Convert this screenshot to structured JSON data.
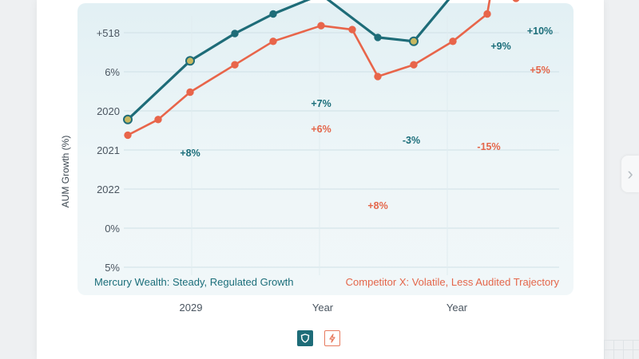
{
  "chart_data": {
    "type": "line",
    "ylabel": "AUM Growth (%)",
    "y_tick_labels": [
      "+518",
      "6%",
      "2020",
      "2021",
      "2022",
      "0%",
      "5%"
    ],
    "x_tick_labels": [
      "2029",
      "Year",
      "Year"
    ],
    "grid": true,
    "series": [
      {
        "name": "Mercury Wealth: Steady, Regulated Growth",
        "color": "#1e6c78",
        "values": [
          -0.2,
          1.3,
          2.0,
          2.5,
          3.0,
          1.9,
          1.8,
          3.0,
          4.5,
          5.0
        ]
      },
      {
        "name": "Competitor X: Volatile, Less Audited Trajectory",
        "color": "#e8654a",
        "values": [
          -0.6,
          -0.2,
          0.5,
          1.2,
          1.8,
          2.2,
          2.1,
          0.9,
          1.2,
          1.8,
          2.5,
          4.5,
          2.9,
          3.8
        ]
      }
    ],
    "annotations": [
      {
        "text": "+8%",
        "series": "teal"
      },
      {
        "text": "+7%",
        "series": "teal"
      },
      {
        "text": "-3%",
        "series": "teal"
      },
      {
        "text": "+9%",
        "series": "teal"
      },
      {
        "text": "+10%",
        "series": "teal"
      },
      {
        "text": "+6%",
        "series": "red"
      },
      {
        "text": "+8%",
        "series": "red"
      },
      {
        "text": "-15%",
        "series": "red"
      },
      {
        "text": "+5%",
        "series": "red"
      }
    ]
  },
  "legend": {
    "teal": "Mercury Wealth: Steady, Regulated Growth",
    "red": "Competitor X: Volatile, Less Audited Trajectory"
  },
  "icons": [
    "shield-icon",
    "bolt-icon"
  ],
  "colors": {
    "teal": "#1e6c78",
    "red": "#e8654a",
    "marker_fill": "#c8b860"
  }
}
